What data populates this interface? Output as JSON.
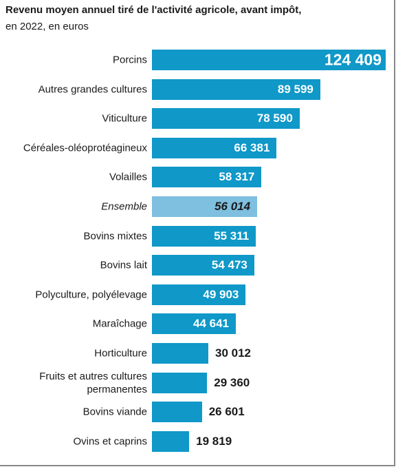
{
  "chart_data": {
    "type": "bar",
    "orientation": "horizontal",
    "title": "Revenu moyen annuel tiré de l'activité agricole, avant impôt,",
    "subtitle": "en 2022, en euros",
    "categories": [
      "Porcins",
      "Autres grandes cultures",
      "Viticulture",
      "Céréales-oléoprotéagineux",
      "Volailles",
      "Ensemble",
      "Bovins mixtes",
      "Bovins lait",
      "Polyculture, polyélevage",
      "Maraîchage",
      "Horticulture",
      "Fruits et autres cultures\npermanentes",
      "Bovins viande",
      "Ovins et caprins"
    ],
    "values": [
      124409,
      89599,
      78590,
      66381,
      58317,
      56014,
      55311,
      54473,
      49903,
      44641,
      30012,
      29360,
      26601,
      19819
    ],
    "value_labels": [
      "124 409",
      "89 599",
      "78 590",
      "66 381",
      "58 317",
      "56 014",
      "55 311",
      "54 473",
      "49 903",
      "44 641",
      "30 012",
      "29 360",
      "26 601",
      "19 819"
    ],
    "color": "#0f98c8",
    "highlight": "Ensemble",
    "highlight_color": "#7fbfdf"
  }
}
